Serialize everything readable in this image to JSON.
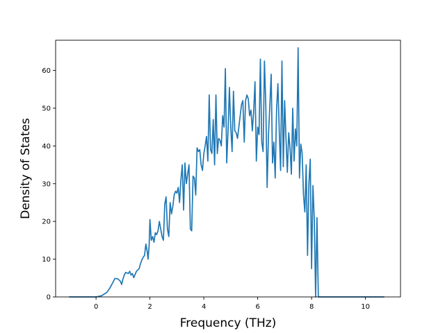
{
  "chart_data": {
    "type": "line",
    "title": "",
    "xlabel": "Frequency (THz)",
    "ylabel": "Density of States",
    "xlim": [
      -1.5,
      11.3
    ],
    "ylim": [
      0,
      68
    ],
    "xticks": [
      0,
      2,
      4,
      6,
      8,
      10
    ],
    "yticks": [
      0,
      10,
      20,
      30,
      40,
      50,
      60
    ],
    "grid": false,
    "legend": "none",
    "series": [
      {
        "color": "#1f77b4",
        "x": [
          -1.0,
          -0.5,
          0.0,
          0.2,
          0.4,
          0.5,
          0.6,
          0.7,
          0.8,
          0.9,
          0.95,
          1.0,
          1.05,
          1.1,
          1.2,
          1.25,
          1.3,
          1.35,
          1.4,
          1.5,
          1.6,
          1.65,
          1.7,
          1.75,
          1.8,
          1.85,
          1.9,
          1.93,
          1.97,
          2.0,
          2.05,
          2.1,
          2.15,
          2.2,
          2.25,
          2.3,
          2.35,
          2.4,
          2.45,
          2.5,
          2.55,
          2.6,
          2.65,
          2.7,
          2.75,
          2.8,
          2.85,
          2.9,
          2.95,
          3.0,
          3.05,
          3.1,
          3.15,
          3.2,
          3.25,
          3.3,
          3.35,
          3.4,
          3.45,
          3.5,
          3.55,
          3.6,
          3.65,
          3.7,
          3.75,
          3.8,
          3.85,
          3.9,
          3.95,
          4.0,
          4.05,
          4.1,
          4.15,
          4.2,
          4.25,
          4.3,
          4.35,
          4.4,
          4.45,
          4.5,
          4.55,
          4.6,
          4.65,
          4.7,
          4.75,
          4.8,
          4.85,
          4.9,
          4.95,
          5.0,
          5.05,
          5.1,
          5.15,
          5.2,
          5.25,
          5.3,
          5.35,
          5.4,
          5.45,
          5.5,
          5.55,
          5.6,
          5.65,
          5.7,
          5.75,
          5.8,
          5.85,
          5.9,
          5.95,
          6.0,
          6.05,
          6.1,
          6.15,
          6.2,
          6.25,
          6.3,
          6.35,
          6.4,
          6.45,
          6.5,
          6.55,
          6.6,
          6.65,
          6.7,
          6.75,
          6.8,
          6.85,
          6.9,
          6.95,
          7.0,
          7.05,
          7.1,
          7.15,
          7.2,
          7.25,
          7.3,
          7.35,
          7.4,
          7.45,
          7.5,
          7.55,
          7.6,
          7.65,
          7.7,
          7.75,
          7.8,
          7.85,
          7.9,
          7.95,
          8.0,
          8.05,
          8.1,
          8.15,
          8.2,
          8.25,
          8.3,
          8.35,
          8.4,
          8.45,
          8.5,
          8.55,
          8.6,
          8.65,
          8.7,
          8.75,
          8.8,
          8.85,
          8.9,
          8.95,
          9.0,
          9.05,
          9.1,
          9.15,
          9.2,
          9.25,
          9.3,
          9.35,
          9.4,
          9.45,
          9.5,
          10.0,
          10.7
        ],
        "y": [
          0,
          0,
          0,
          0.3,
          1.2,
          2.2,
          3.5,
          4.9,
          4.8,
          4.2,
          3.3,
          4.8,
          5.8,
          6.5,
          6.2,
          6.8,
          5.8,
          6.2,
          5.1,
          6.8,
          7.5,
          8.8,
          9.8,
          10.5,
          11.0,
          14.0,
          12.0,
          10.0,
          13.5,
          20.5,
          15.0,
          16.0,
          14.5,
          17.0,
          16.5,
          17.5,
          20.0,
          18.0,
          16.0,
          15.0,
          24.5,
          26.5,
          18.0,
          16.0,
          25.0,
          22.0,
          24.0,
          27.0,
          28.0,
          27.5,
          29.0,
          25.0,
          31.0,
          35.0,
          23.0,
          35.5,
          30.0,
          32.5,
          35.0,
          18.0,
          17.5,
          32.0,
          31.5,
          27.0,
          39.5,
          38.5,
          39.0,
          35.0,
          33.5,
          38.0,
          40.0,
          42.5,
          36.0,
          53.5,
          39.0,
          38.0,
          47.0,
          35.0,
          53.5,
          38.0,
          42.0,
          41.5,
          40.0,
          48.0,
          45.0,
          60.5,
          35.5,
          44.0,
          55.5,
          45.0,
          38.5,
          54.5,
          44.0,
          43.5,
          42.0,
          45.0,
          48.0,
          51.0,
          52.0,
          41.0,
          52.0,
          53.5,
          52.5,
          48.0,
          49.5,
          44.0,
          49.0,
          57.0,
          36.0,
          45.0,
          43.0,
          63.0,
          41.0,
          38.5,
          62.5,
          51.0,
          29.0,
          43.0,
          50.5,
          59.0,
          35.5,
          41.0,
          31.5,
          49.5,
          56.5,
          44.0,
          33.5,
          62.5,
          34.5,
          52.0,
          42.0,
          33.0,
          43.5,
          39.5,
          32.5,
          50.0,
          36.0,
          44.5,
          40.0,
          66.0,
          31.5,
          40.5,
          38.0,
          27.0,
          22.5,
          35.0,
          11.0,
          30.0,
          36.5,
          7.5,
          29.5,
          20.5,
          0,
          21.0,
          0,
          0,
          0,
          0,
          0,
          0,
          0,
          0,
          0,
          0,
          0,
          0,
          0,
          0,
          0,
          0,
          0,
          0,
          0,
          0,
          0,
          0,
          0,
          0,
          0,
          0,
          0,
          0
        ]
      }
    ]
  }
}
